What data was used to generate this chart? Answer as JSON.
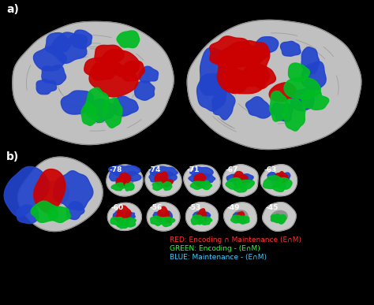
{
  "background_color": "#000000",
  "label_a": "a)",
  "label_b": "b)",
  "label_color": "#ffffff",
  "label_fontsize": 10,
  "legend_items": [
    {
      "label": "RED: Encoding ∩ Maintenance (E∩M)",
      "color": "#ff3333"
    },
    {
      "label": "GREEN: Encoding - (E∩M)",
      "color": "#33ff44"
    },
    {
      "label": "BLUE: Maintenance - (E∩M)",
      "color": "#44ccff"
    }
  ],
  "legend_fontsize": 6.5,
  "slice_labels": [
    "-78",
    "-74",
    "-71",
    "-67",
    "-63",
    "-60",
    "-56",
    "-53",
    "-49",
    "-45"
  ],
  "slice_label_color": "#ffffff",
  "slice_label_fontsize": 6.5,
  "figsize": [
    4.74,
    3.87
  ],
  "dpi": 100
}
